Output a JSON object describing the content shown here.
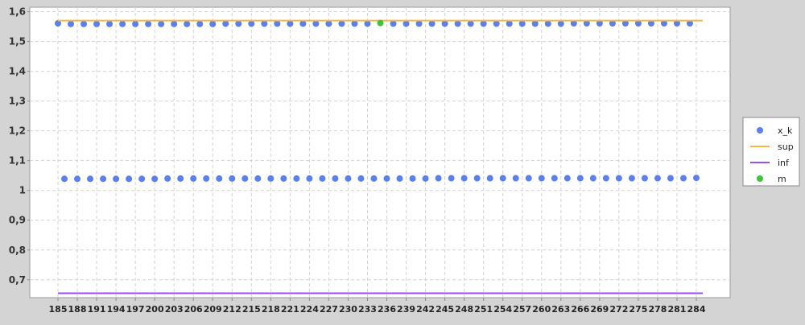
{
  "chart_data": {
    "type": "scatter",
    "title": "",
    "xlabel": "",
    "ylabel": "",
    "x_range": [
      185,
      284
    ],
    "ylim": [
      0.64,
      1.615
    ],
    "y_ticks": [
      "0,7",
      "0,8",
      "0,9",
      "1",
      "1,1",
      "1,2",
      "1,3",
      "1,4",
      "1,5",
      "1,6"
    ],
    "y_tick_values": [
      0.7,
      0.8,
      0.9,
      1.0,
      1.1,
      1.2,
      1.3,
      1.4,
      1.5,
      1.6
    ],
    "x_ticks": [
      185,
      188,
      191,
      194,
      197,
      200,
      203,
      206,
      209,
      212,
      215,
      218,
      221,
      224,
      227,
      230,
      233,
      236,
      239,
      242,
      245,
      248,
      251,
      254,
      257,
      260,
      263,
      266,
      269,
      272,
      275,
      278,
      281,
      284
    ],
    "grid": true,
    "legend_position": "right",
    "series": [
      {
        "name": "x_k",
        "kind": "scatter",
        "color": "#5b7ff0",
        "points": [
          [
            185,
            1.561
          ],
          [
            186,
            1.039
          ],
          [
            187,
            1.559
          ],
          [
            188,
            1.039
          ],
          [
            189,
            1.559
          ],
          [
            190,
            1.039
          ],
          [
            191,
            1.559
          ],
          [
            192,
            1.039
          ],
          [
            193,
            1.559
          ],
          [
            194,
            1.039
          ],
          [
            195,
            1.559
          ],
          [
            196,
            1.039
          ],
          [
            197,
            1.559
          ],
          [
            198,
            1.039
          ],
          [
            199,
            1.559
          ],
          [
            200,
            1.039
          ],
          [
            201,
            1.559
          ],
          [
            202,
            1.04
          ],
          [
            203,
            1.559
          ],
          [
            204,
            1.04
          ],
          [
            205,
            1.559
          ],
          [
            206,
            1.04
          ],
          [
            207,
            1.559
          ],
          [
            208,
            1.04
          ],
          [
            209,
            1.559
          ],
          [
            210,
            1.04
          ],
          [
            211,
            1.56
          ],
          [
            212,
            1.04
          ],
          [
            213,
            1.56
          ],
          [
            214,
            1.04
          ],
          [
            215,
            1.56
          ],
          [
            216,
            1.04
          ],
          [
            217,
            1.56
          ],
          [
            218,
            1.04
          ],
          [
            219,
            1.56
          ],
          [
            220,
            1.04
          ],
          [
            221,
            1.56
          ],
          [
            222,
            1.04
          ],
          [
            223,
            1.56
          ],
          [
            224,
            1.04
          ],
          [
            225,
            1.56
          ],
          [
            226,
            1.04
          ],
          [
            227,
            1.56
          ],
          [
            228,
            1.04
          ],
          [
            229,
            1.56
          ],
          [
            230,
            1.04
          ],
          [
            231,
            1.56
          ],
          [
            232,
            1.04
          ],
          [
            233,
            1.56
          ],
          [
            234,
            1.04
          ],
          [
            236,
            1.04
          ],
          [
            237,
            1.56
          ],
          [
            238,
            1.04
          ],
          [
            239,
            1.56
          ],
          [
            240,
            1.04
          ],
          [
            241,
            1.56
          ],
          [
            242,
            1.04
          ],
          [
            243,
            1.56
          ],
          [
            244,
            1.041
          ],
          [
            245,
            1.56
          ],
          [
            246,
            1.041
          ],
          [
            247,
            1.56
          ],
          [
            248,
            1.041
          ],
          [
            249,
            1.56
          ],
          [
            250,
            1.041
          ],
          [
            251,
            1.56
          ],
          [
            252,
            1.041
          ],
          [
            253,
            1.56
          ],
          [
            254,
            1.041
          ],
          [
            255,
            1.56
          ],
          [
            256,
            1.041
          ],
          [
            257,
            1.56
          ],
          [
            258,
            1.041
          ],
          [
            259,
            1.56
          ],
          [
            260,
            1.041
          ],
          [
            261,
            1.56
          ],
          [
            262,
            1.041
          ],
          [
            263,
            1.56
          ],
          [
            264,
            1.041
          ],
          [
            265,
            1.561
          ],
          [
            266,
            1.041
          ],
          [
            267,
            1.561
          ],
          [
            268,
            1.041
          ],
          [
            269,
            1.561
          ],
          [
            270,
            1.041
          ],
          [
            271,
            1.561
          ],
          [
            272,
            1.041
          ],
          [
            273,
            1.561
          ],
          [
            274,
            1.041
          ],
          [
            275,
            1.561
          ],
          [
            276,
            1.041
          ],
          [
            277,
            1.561
          ],
          [
            278,
            1.041
          ],
          [
            279,
            1.561
          ],
          [
            280,
            1.041
          ],
          [
            281,
            1.561
          ],
          [
            282,
            1.041
          ],
          [
            283,
            1.561
          ],
          [
            284,
            1.042
          ]
        ]
      },
      {
        "name": "sup",
        "kind": "line",
        "color": "#f5b942",
        "points": [
          [
            185,
            1.57
          ],
          [
            285,
            1.57
          ]
        ]
      },
      {
        "name": "inf",
        "kind": "line",
        "color": "#9a4cf0",
        "points": [
          [
            185,
            0.655
          ],
          [
            285,
            0.655
          ]
        ]
      },
      {
        "name": "m",
        "kind": "scatter",
        "color": "#3cc43c",
        "points": [
          [
            235,
            1.562
          ]
        ]
      }
    ]
  }
}
